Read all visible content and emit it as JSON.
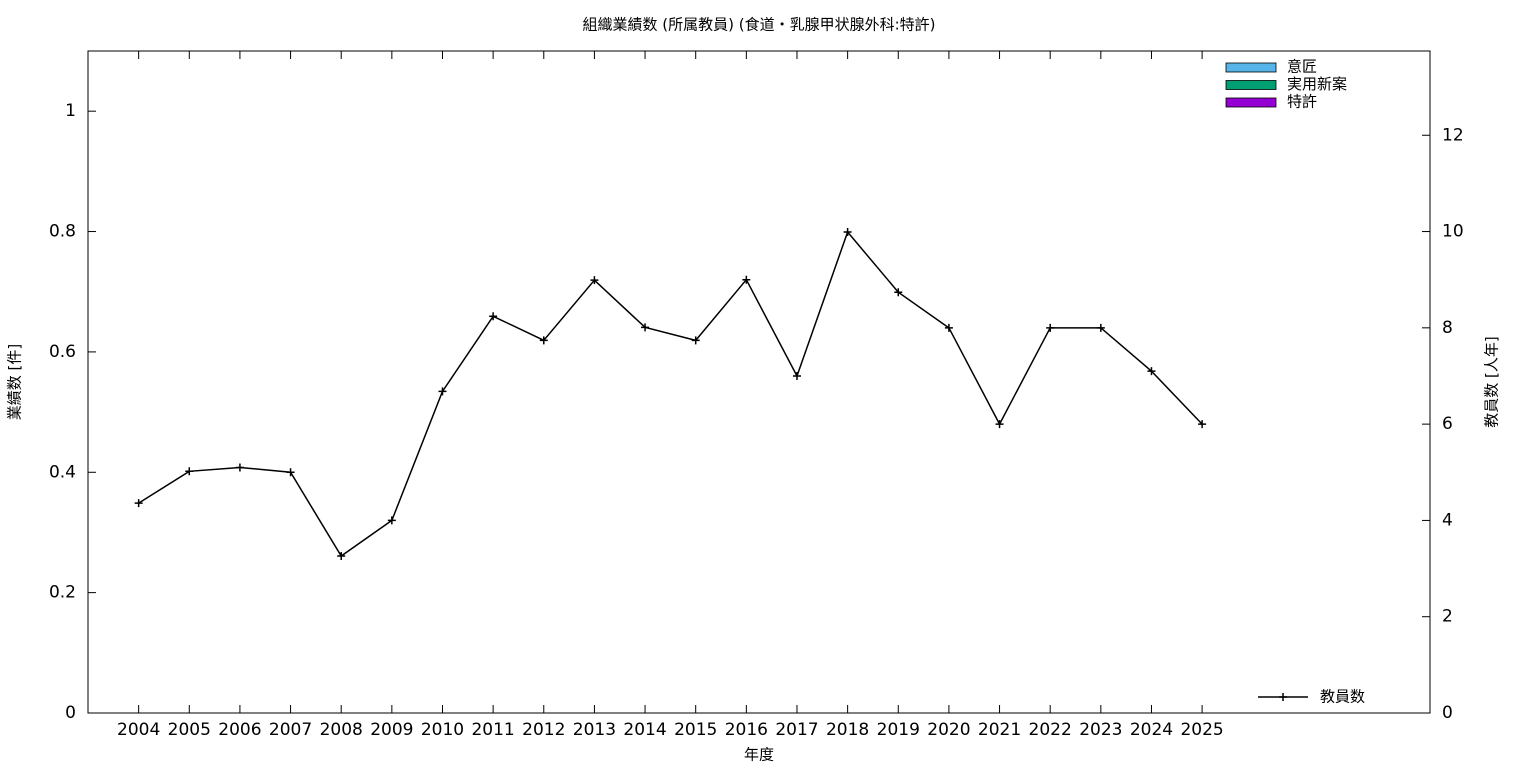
{
  "chart_data": {
    "type": "bar",
    "title": "組織業績数 (所属教員) (食道・乳腺甲状腺外科:特許)",
    "xlabel": "年度",
    "ylabel": "業績数 [件]",
    "y2label": "教員数 [人年]",
    "x": [
      2004,
      2005,
      2006,
      2007,
      2008,
      2009,
      2010,
      2011,
      2012,
      2013,
      2014,
      2015,
      2016,
      2017,
      2018,
      2019,
      2020,
      2021,
      2022,
      2023,
      2024,
      2025
    ],
    "xlim": [
      2003,
      2029.5
    ],
    "xticks": [
      2004,
      2005,
      2006,
      2007,
      2008,
      2009,
      2010,
      2011,
      2012,
      2013,
      2014,
      2015,
      2016,
      2017,
      2018,
      2019,
      2020,
      2021,
      2022,
      2023,
      2024,
      2025
    ],
    "ylim": [
      0,
      1.1
    ],
    "yticks": [
      0,
      0.2,
      0.4,
      0.6,
      0.8,
      1
    ],
    "y2lim": [
      0,
      13.75
    ],
    "y2ticks": [
      0,
      2,
      4,
      6,
      8,
      10,
      12
    ],
    "legend": "top-right",
    "series": [
      {
        "name": "意匠",
        "type": "bar",
        "color": "#56b4e9",
        "values": [
          0,
          0,
          0,
          0,
          0,
          0,
          0,
          0,
          0,
          0,
          0,
          0,
          0,
          0,
          0,
          0,
          0,
          0,
          0,
          0,
          0,
          0
        ]
      },
      {
        "name": "実用新案",
        "type": "bar",
        "color": "#009e73",
        "values": [
          0,
          0,
          0,
          0,
          0,
          0,
          0,
          0,
          0,
          0,
          0,
          0,
          0,
          0,
          0,
          0,
          0,
          0,
          0,
          0,
          0,
          0
        ]
      },
      {
        "name": "特許",
        "type": "bar",
        "color": "#9400d3",
        "values": [
          0,
          0,
          0,
          0,
          0,
          0,
          0,
          0,
          0,
          0,
          0,
          0,
          0,
          0,
          0,
          0,
          0,
          0,
          0,
          0,
          0,
          0
        ]
      },
      {
        "name": "教員数",
        "type": "line",
        "axis": "y2",
        "color": "#000000",
        "values": [
          4.36,
          5.02,
          5.1,
          5.0,
          3.26,
          4.0,
          6.68,
          8.24,
          7.74,
          8.99,
          8.01,
          7.74,
          9.0,
          7.0,
          9.99,
          8.74,
          8.0,
          6.0,
          8.0,
          8.0,
          7.1,
          6.0
        ]
      }
    ]
  }
}
